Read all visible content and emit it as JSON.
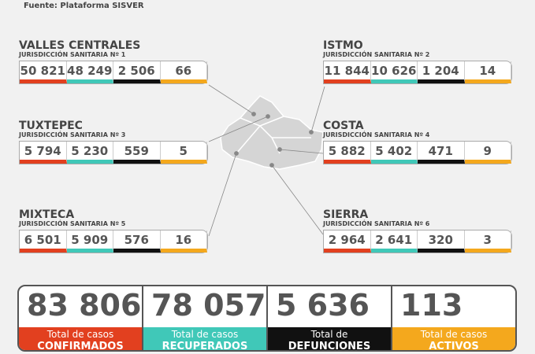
{
  "header": {
    "source": "Fuente: Plataforma SISVER"
  },
  "regions": [
    {
      "name": "VALLES CENTRALES",
      "jurisdiction": "JURISDICCIÓN SANITARIA Nº 1",
      "values": [
        "50 821",
        "48 249",
        "2 506",
        "66"
      ]
    },
    {
      "name": "ISTMO",
      "jurisdiction": "JURISDICCIÓN SANITARIA Nº 2",
      "values": [
        "11 844",
        "10 626",
        "1 204",
        "14"
      ]
    },
    {
      "name": "TUXTEPEC",
      "jurisdiction": "JURISDICCIÓN SANITARIA Nº 3",
      "values": [
        "5 794",
        "5 230",
        "559",
        "5"
      ]
    },
    {
      "name": "COSTA",
      "jurisdiction": "JURISDICCIÓN SANITARIA Nº 4",
      "values": [
        "5 882",
        "5 402",
        "471",
        "9"
      ]
    },
    {
      "name": "MIXTECA",
      "jurisdiction": "JURISDICCIÓN SANITARIA Nº 5",
      "values": [
        "6 501",
        "5 909",
        "576",
        "16"
      ]
    },
    {
      "name": "SIERRA",
      "jurisdiction": "JURISDICCIÓN SANITARIA Nº 6",
      "values": [
        "2 964",
        "2 641",
        "320",
        "3"
      ]
    }
  ],
  "totals": [
    {
      "value": "83 806",
      "label1": "Total de casos",
      "label2": "CONFIRMADOS"
    },
    {
      "value": "78 057",
      "label1": "Total de casos",
      "label2": "RECUPERADOS"
    },
    {
      "value": "5 636",
      "label1": "Total de",
      "label2": "DEFUNCIONES"
    },
    {
      "value": "113",
      "label1": "Total de casos",
      "label2": "ACTIVOS"
    }
  ]
}
